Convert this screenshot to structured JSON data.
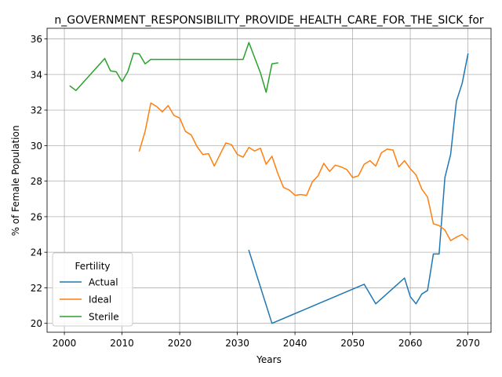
{
  "chart_data": {
    "type": "line",
    "title": "n_GOVERNMENT_RESPONSIBILITY_PROVIDE_HEALTH_CARE_FOR_THE_SICK_for",
    "xlabel": "Years",
    "ylabel": "% of Female Population",
    "xlim": [
      1997,
      2074
    ],
    "ylim": [
      19.5,
      36.6
    ],
    "xticks": [
      2000,
      2010,
      2020,
      2030,
      2040,
      2050,
      2060,
      2070
    ],
    "yticks": [
      20,
      22,
      24,
      26,
      28,
      30,
      32,
      34,
      36
    ],
    "grid": true,
    "legend": {
      "title": "Fertility",
      "placement": "lower-left"
    },
    "series": [
      {
        "name": "Actual",
        "color": "#1f77b4",
        "x": [
          2032,
          2036,
          2052,
          2054,
          2059,
          2060,
          2061,
          2062,
          2063,
          2064,
          2065,
          2066,
          2067,
          2068,
          2069,
          2070
        ],
        "y": [
          24.1,
          20.0,
          22.2,
          21.1,
          22.55,
          21.5,
          21.1,
          21.65,
          21.85,
          23.9,
          23.9,
          28.2,
          29.5,
          32.5,
          33.5,
          35.15
        ]
      },
      {
        "name": "Ideal",
        "color": "#ff7f0e",
        "x": [
          2013,
          2014,
          2015,
          2016,
          2017,
          2018,
          2019,
          2020,
          2021,
          2022,
          2023,
          2024,
          2025,
          2026,
          2027,
          2028,
          2029,
          2030,
          2031,
          2032,
          2033,
          2034,
          2035,
          2036,
          2037,
          2038,
          2039,
          2040,
          2041,
          2042,
          2043,
          2044,
          2045,
          2046,
          2047,
          2048,
          2049,
          2050,
          2051,
          2052,
          2053,
          2054,
          2055,
          2056,
          2057,
          2058,
          2059,
          2060,
          2061,
          2062,
          2063,
          2064,
          2065,
          2066,
          2067,
          2068,
          2069,
          2070
        ],
        "y": [
          29.7,
          30.8,
          32.4,
          32.2,
          31.9,
          32.25,
          31.7,
          31.55,
          30.8,
          30.6,
          29.95,
          29.5,
          29.55,
          28.85,
          29.5,
          30.15,
          30.05,
          29.5,
          29.35,
          29.9,
          29.7,
          29.85,
          28.95,
          29.4,
          28.45,
          27.65,
          27.5,
          27.2,
          27.25,
          27.2,
          27.95,
          28.3,
          29.0,
          28.55,
          28.9,
          28.8,
          28.65,
          28.2,
          28.3,
          28.95,
          29.15,
          28.85,
          29.6,
          29.8,
          29.75,
          28.8,
          29.15,
          28.7,
          28.35,
          27.55,
          27.1,
          25.6,
          25.5,
          25.25,
          24.65,
          24.85,
          25.0,
          24.7
        ]
      },
      {
        "name": "Sterile",
        "color": "#2ca02c",
        "x": [
          2001,
          2002,
          2007,
          2008,
          2009,
          2010,
          2011,
          2012,
          2013,
          2014,
          2015,
          2031,
          2032,
          2034,
          2035,
          2036,
          2037
        ],
        "y": [
          33.35,
          33.1,
          34.9,
          34.2,
          34.15,
          33.6,
          34.15,
          35.2,
          35.15,
          34.6,
          34.85,
          34.85,
          35.8,
          34.1,
          33.0,
          34.6,
          34.65
        ]
      }
    ]
  }
}
